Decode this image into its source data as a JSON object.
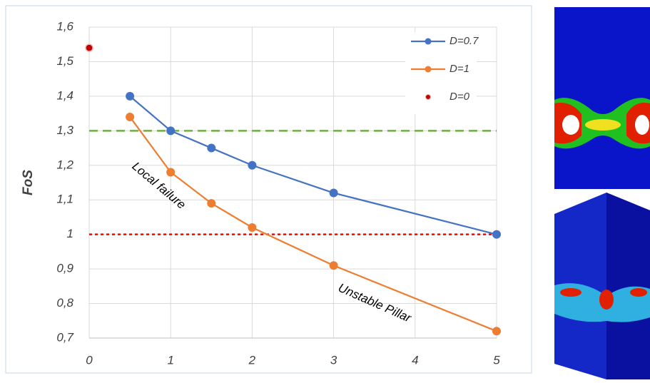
{
  "chart_data": {
    "type": "line",
    "y_label": "FoS",
    "x": [
      0.5,
      1,
      1.5,
      2,
      3,
      5
    ],
    "series": [
      {
        "name": "D=0.7",
        "color": "#4472c4",
        "x": [
          0.5,
          1,
          1.5,
          2,
          3,
          5
        ],
        "values": [
          1.4,
          1.3,
          1.25,
          1.2,
          1.12,
          1.0
        ],
        "line": true
      },
      {
        "name": "D=1",
        "color": "#ed7d31",
        "x": [
          0.5,
          1,
          1.5,
          2,
          3,
          5
        ],
        "values": [
          1.34,
          1.18,
          1.09,
          1.02,
          0.91,
          0.72
        ],
        "line": true
      },
      {
        "name": "D=0",
        "color": "#c00000",
        "x": [
          0
        ],
        "values": [
          1.54
        ],
        "line": false
      }
    ],
    "xlim": [
      0,
      5
    ],
    "xticks": [
      0,
      1,
      2,
      3,
      4,
      5
    ],
    "ylim": [
      0.7,
      1.6
    ],
    "yticks": [
      {
        "value": 0.7,
        "label": "0,7"
      },
      {
        "value": 0.8,
        "label": "0,8"
      },
      {
        "value": 0.9,
        "label": "0,9"
      },
      1,
      {
        "value": 1.1,
        "label": "1,1"
      },
      {
        "value": 1.2,
        "label": "1,2"
      },
      {
        "value": 1.3,
        "label": "1,3"
      },
      {
        "value": 1.4,
        "label": "1,4"
      },
      {
        "value": 1.5,
        "label": "1,5"
      },
      {
        "value": 1.6,
        "label": "1,6"
      }
    ],
    "grid": true,
    "legend": "top-right",
    "reference_lines": [
      {
        "value": 1.3,
        "color": "#70ad47",
        "style": "dashed"
      },
      {
        "value": 1,
        "color": "#ff0000",
        "style": "dotted"
      }
    ],
    "annotations": [
      {
        "text": "Local failure",
        "x": 0.85,
        "y": 1.14,
        "angle": 40
      },
      {
        "text": "Unstable Pillar",
        "x": 3.5,
        "y": 0.8,
        "angle": 24
      }
    ]
  }
}
